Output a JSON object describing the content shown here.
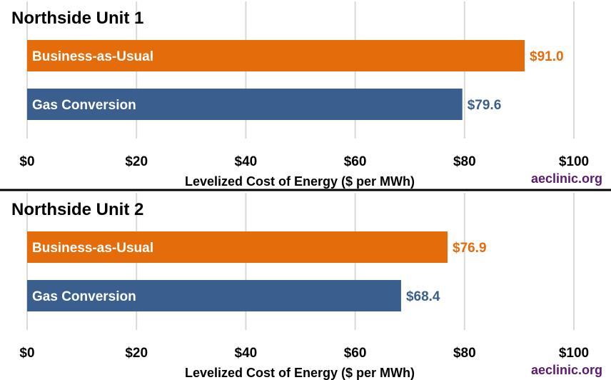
{
  "colors": {
    "bau": "#E46C0A",
    "gas": "#3A5F8E",
    "credit": "#5A1A6E",
    "grid": "#D9D9D9",
    "divider": "#000000"
  },
  "chart_data": [
    {
      "type": "bar",
      "orientation": "horizontal",
      "title": "Northside Unit 1",
      "categories": [
        "Business-as-Usual",
        "Gas Conversion"
      ],
      "values": [
        91.0,
        79.6
      ],
      "value_labels": [
        "$91.0",
        "$79.6"
      ],
      "xlabel": "Levelized Cost of Energy ($ per MWh)",
      "xlim": [
        0,
        100
      ],
      "ticks": [
        0,
        20,
        40,
        60,
        80,
        100
      ],
      "tick_labels": [
        "$0",
        "$20",
        "$40",
        "$60",
        "$80",
        "$100"
      ],
      "grid": true,
      "credit": "aeclinic.org"
    },
    {
      "type": "bar",
      "orientation": "horizontal",
      "title": "Northside Unit 2",
      "categories": [
        "Business-as-Usual",
        "Gas Conversion"
      ],
      "values": [
        76.9,
        68.4
      ],
      "value_labels": [
        "$76.9",
        "$68.4"
      ],
      "xlabel": "Levelized Cost of Energy ($ per MWh)",
      "xlim": [
        0,
        100
      ],
      "ticks": [
        0,
        20,
        40,
        60,
        80,
        100
      ],
      "tick_labels": [
        "$0",
        "$20",
        "$40",
        "$60",
        "$80",
        "$100"
      ],
      "grid": true,
      "credit": "aeclinic.org"
    }
  ]
}
